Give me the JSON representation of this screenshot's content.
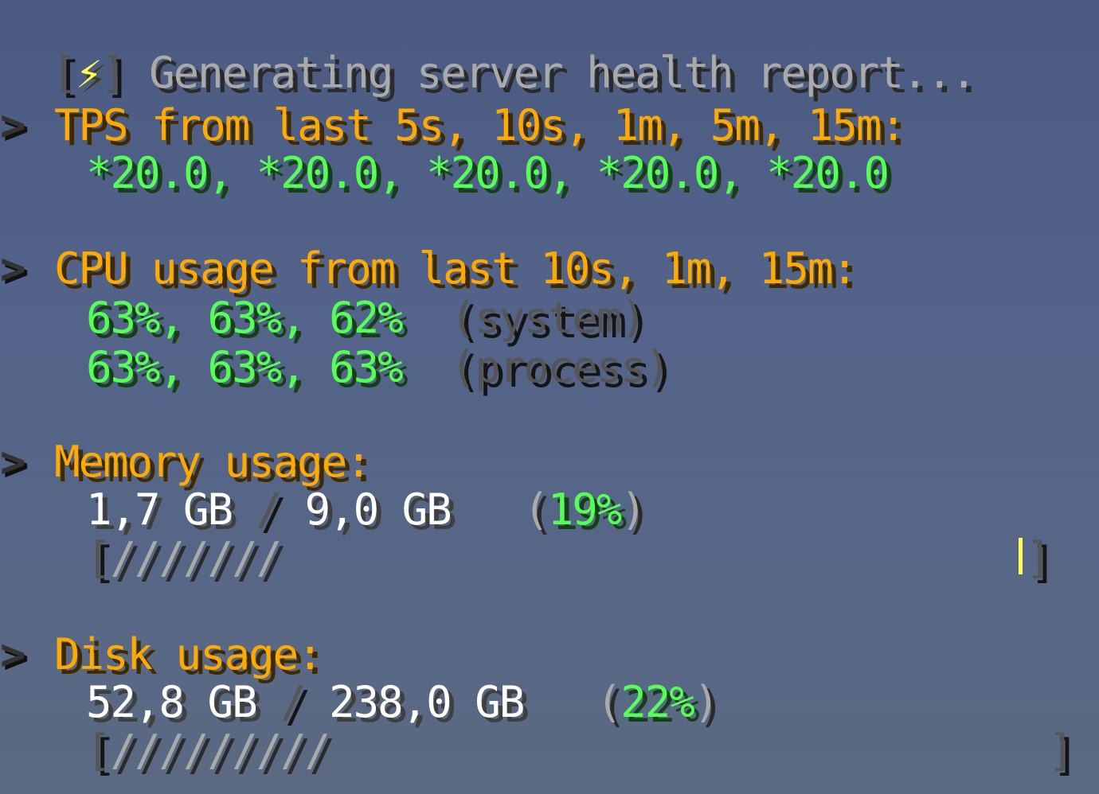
{
  "title": {
    "icon": "lightning-icon",
    "bracket_open": "[",
    "bracket_close": "]",
    "text": "Generating server health report..."
  },
  "arrow": ">",
  "tps": {
    "header": "TPS from last 5s, 10s, 1m, 5m, 15m:",
    "values": "*20.0, *20.0, *20.0, *20.0, *20.0"
  },
  "cpu": {
    "header": "CPU usage from last 10s, 1m, 15m:",
    "system_values": "63%, 63%, 62%",
    "system_label": "(system)",
    "process_values": "63%, 63%, 63%",
    "process_label": "(process)"
  },
  "memory": {
    "header": "Memory usage:",
    "used": "1,7 GB",
    "sep": "/",
    "total": "9,0 GB",
    "percent": "19%",
    "percent_value": 19,
    "bar_open": "[",
    "bar_fill": "///////",
    "bar_close": "]"
  },
  "disk": {
    "header": "Disk usage:",
    "used": "52,8 GB",
    "sep": "/",
    "total": "238,0 GB",
    "percent": "22%",
    "percent_value": 22,
    "bar_open": "[",
    "bar_fill": "/////////",
    "bar_close": "]"
  },
  "colors": {
    "header": "#ffaa00",
    "value": "#55ff55",
    "muted": "#555555",
    "title": "#aaaaaa",
    "icon": "#ffff55"
  }
}
